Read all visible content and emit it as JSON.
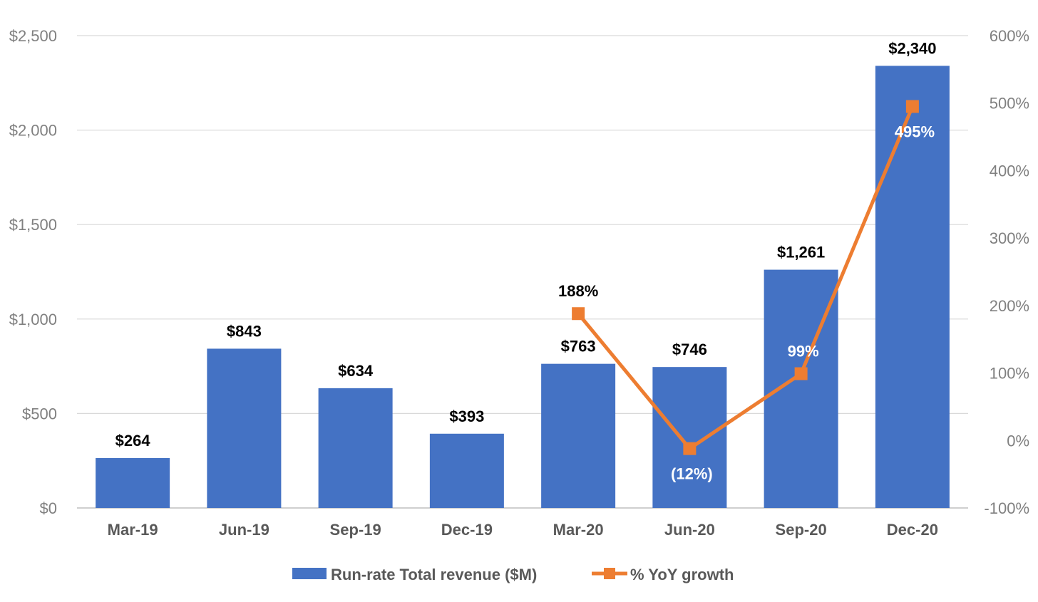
{
  "chart_data": {
    "type": "bar",
    "categories": [
      "Mar-19",
      "Jun-19",
      "Sep-19",
      "Dec-19",
      "Mar-20",
      "Jun-20",
      "Sep-20",
      "Dec-20"
    ],
    "series": [
      {
        "name": "Run-rate Total revenue ($M)",
        "kind": "bar",
        "axis": "left",
        "color": "#4472C4",
        "values": [
          264,
          843,
          634,
          393,
          763,
          746,
          1261,
          2340
        ],
        "labels": [
          "$264",
          "$843",
          "$634",
          "$393",
          "$763",
          "$746",
          "$1,261",
          "$2,340"
        ]
      },
      {
        "name": "% YoY growth",
        "kind": "line",
        "axis": "right",
        "color": "#ED7D31",
        "values": [
          null,
          null,
          null,
          null,
          188,
          -12,
          99,
          495
        ],
        "labels": [
          null,
          null,
          null,
          null,
          "188%",
          "(12%)",
          "99%",
          "495%"
        ]
      }
    ],
    "ylim": [
      0,
      2500
    ],
    "y2lim": [
      -100,
      600
    ],
    "yticks": [
      "$0",
      "$500",
      "$1,000",
      "$1,500",
      "$2,000",
      "$2,500"
    ],
    "y2ticks": [
      "-100%",
      "0%",
      "100%",
      "200%",
      "300%",
      "400%",
      "500%",
      "600%"
    ],
    "grid": true,
    "legend_position": "bottom"
  }
}
